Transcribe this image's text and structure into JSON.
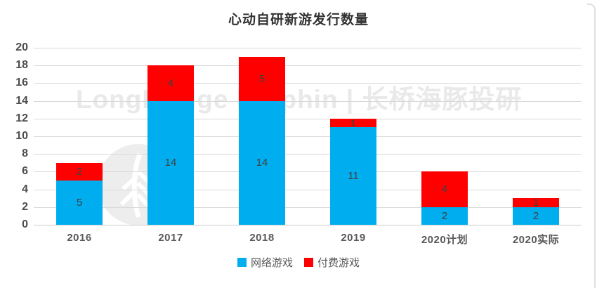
{
  "title": "心动自研新游发行数量",
  "watermark": {
    "text": "LongBridge Dolphin | 长桥海豚投研",
    "color": "#e9e9e9"
  },
  "chart_data": {
    "type": "bar",
    "stacked": true,
    "title": "心动自研新游发行数量",
    "categories": [
      "2016",
      "2017",
      "2018",
      "2019",
      "2020计划",
      "2020实际"
    ],
    "series": [
      {
        "name": "网络游戏",
        "key": "online-games",
        "color": "#00AEEF",
        "values": [
          5,
          14,
          14,
          11,
          2,
          2
        ]
      },
      {
        "name": "付费游戏",
        "key": "paid-games",
        "color": "#FF0000",
        "values": [
          2,
          4,
          5,
          1,
          4,
          1
        ]
      }
    ],
    "totals": [
      7,
      18,
      19,
      12,
      6,
      3
    ],
    "xlabel": "",
    "ylabel": "",
    "ylim": [
      0,
      20
    ],
    "yticks": [
      0,
      2,
      4,
      6,
      8,
      10,
      12,
      14,
      16,
      18,
      20
    ],
    "grid": true,
    "gridline_color": "#d9d9d9",
    "data_labels": true,
    "legend_position": "bottom"
  },
  "legend": {
    "items": [
      {
        "label": "网络游戏",
        "color": "#00AEEF"
      },
      {
        "label": "付费游戏",
        "color": "#FF0000"
      }
    ]
  }
}
